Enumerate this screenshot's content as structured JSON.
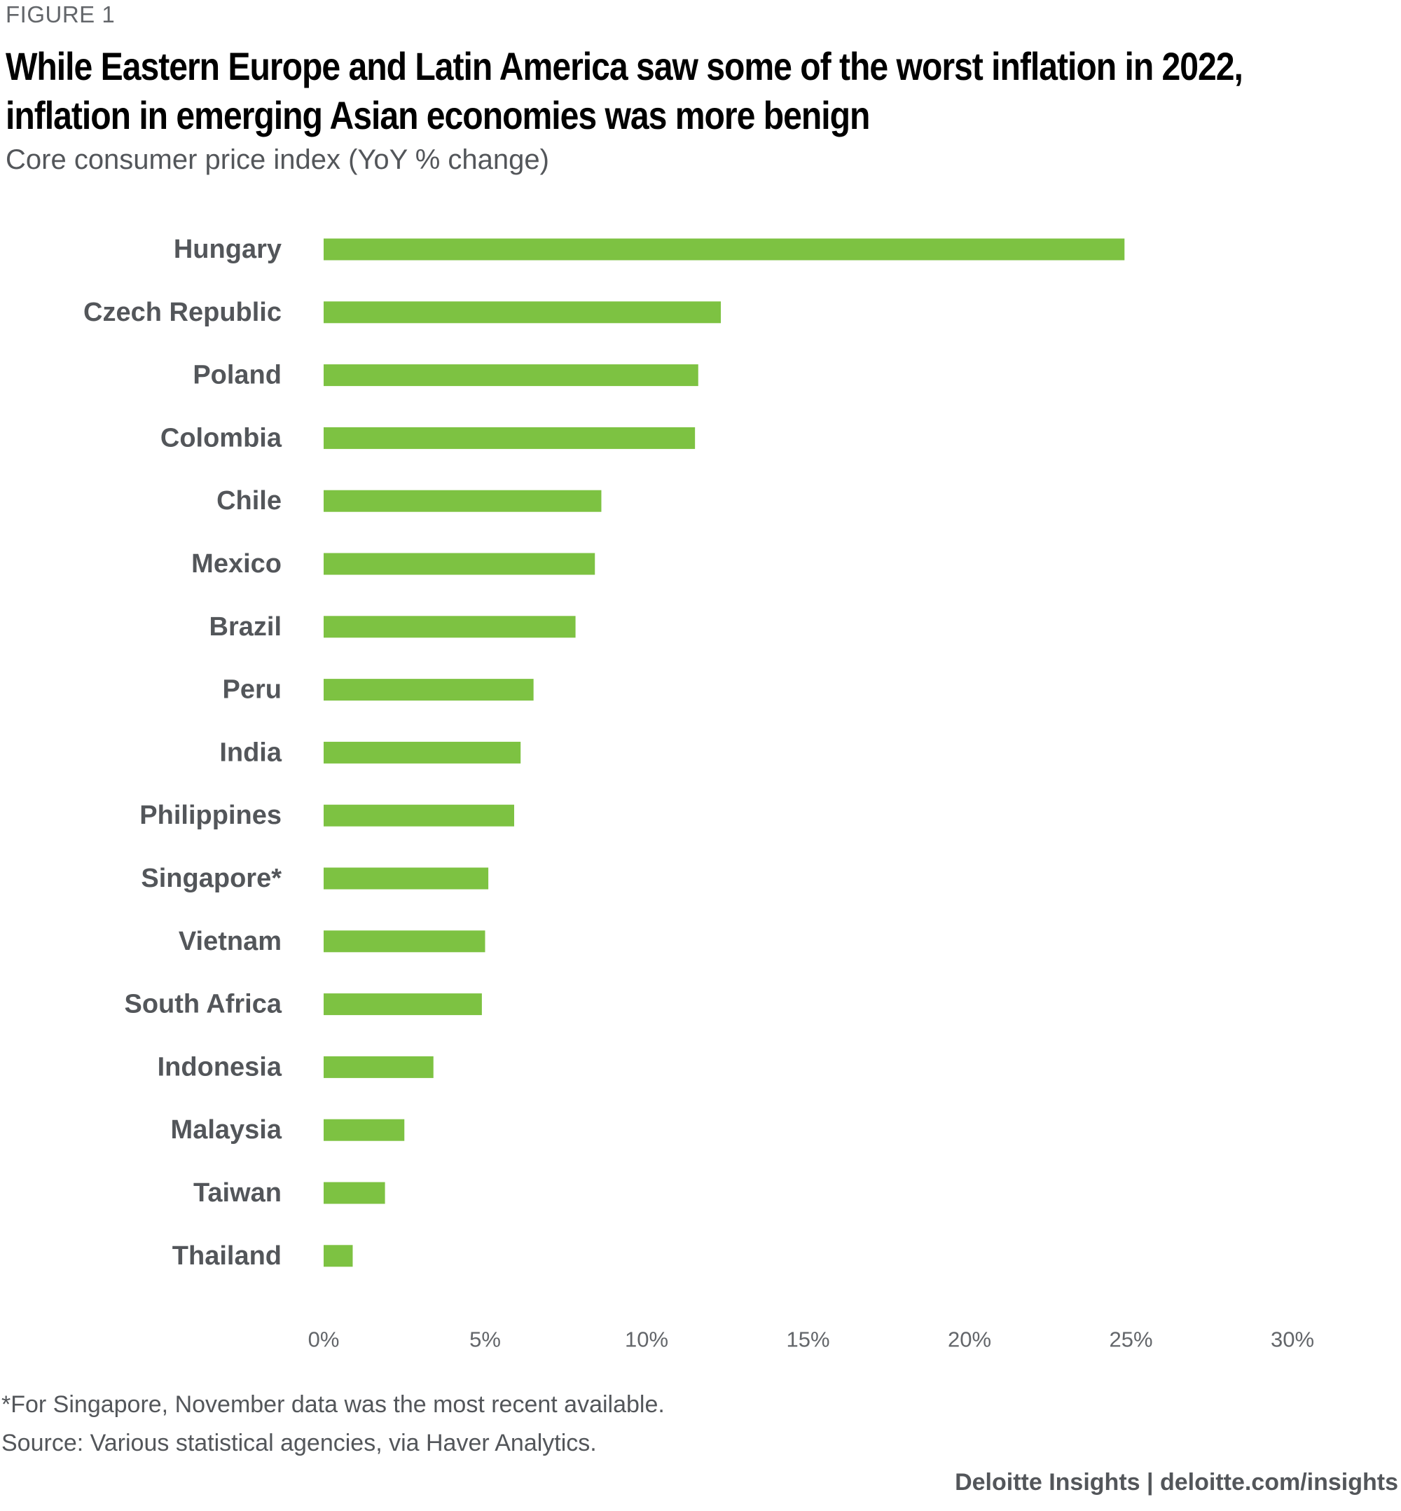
{
  "figure_label": "FIGURE 1",
  "title_line1": "While Eastern Europe and Latin America saw some of the worst inflation in 2022,",
  "title_line2": "inflation in emerging Asian economies was more benign",
  "subtitle": "Core consumer price index (YoY % change)",
  "footnote": "*For Singapore, November data was the most recent available.",
  "source": "Source: Various statistical agencies, via Haver Analytics.",
  "branding": "Deloitte Insights | deloitte.com/insights",
  "colors": {
    "bar": "#7dc242",
    "category_label": "#53565a",
    "tick_label": "#63666a"
  },
  "chart_data": {
    "type": "bar",
    "orientation": "horizontal",
    "title": "While Eastern Europe and Latin America saw some of the worst inflation in 2022, inflation in emerging Asian economies was more benign",
    "subtitle": "Core consumer price index (YoY % change)",
    "xlabel": "",
    "ylabel": "",
    "xlim": [
      0,
      30
    ],
    "x_ticks": [
      0,
      5,
      10,
      15,
      20,
      25,
      30
    ],
    "x_tick_labels": [
      "0%",
      "5%",
      "10%",
      "15%",
      "20%",
      "25%",
      "30%"
    ],
    "grid": false,
    "categories": [
      "Hungary",
      "Czech Republic",
      "Poland",
      "Colombia",
      "Chile",
      "Mexico",
      "Brazil",
      "Peru",
      "India",
      "Philippines",
      "Singapore*",
      "Vietnam",
      "South Africa",
      "Indonesia",
      "Malaysia",
      "Taiwan",
      "Thailand"
    ],
    "values": [
      24.8,
      12.3,
      11.6,
      11.5,
      8.6,
      8.4,
      7.8,
      6.5,
      6.1,
      5.9,
      5.1,
      5.0,
      4.9,
      3.4,
      2.5,
      1.9,
      0.9
    ]
  }
}
